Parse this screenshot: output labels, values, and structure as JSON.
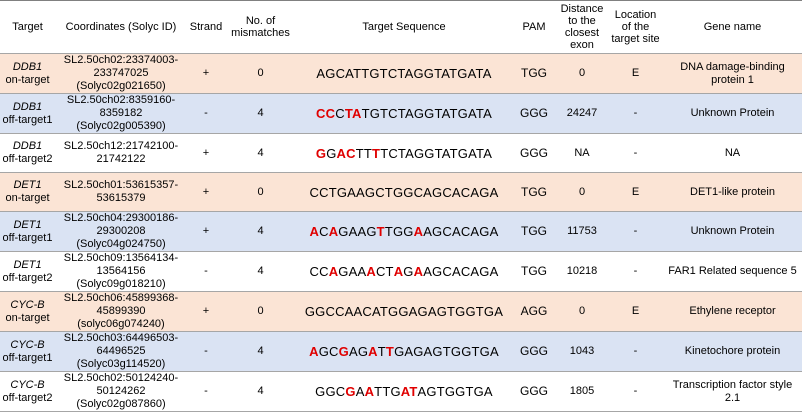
{
  "table": {
    "header": [
      "Target",
      "Coordinates (Solyc ID)",
      "Strand",
      "No. of mismatches",
      "Target Sequence",
      "PAM",
      "Distance to the closest exon",
      "Location of the target site",
      "Gene name"
    ],
    "rows": [
      {
        "shade": "#fbe4d5",
        "target": {
          "gene": "DDB1",
          "label": "on-target"
        },
        "coordinates": {
          "location": "SL2.50ch02:23374003-233747025",
          "id": "(Solyc02g021650)"
        },
        "strand": "+",
        "mismatches": 0,
        "sequence": [
          {
            "text": "AGCATTGTCTAGGTATGATA",
            "mismatch": false
          }
        ],
        "pam": "TGG",
        "distance": "0",
        "location": "E",
        "gene_name": "DNA damage-binding protein 1"
      },
      {
        "shade": "#dae3f3",
        "target": {
          "gene": "DDB1",
          "label": "off-target1"
        },
        "coordinates": {
          "location": "SL2.50ch02:8359160-8359182",
          "id": "(Solyc02g005390)"
        },
        "strand": "-",
        "mismatches": 4,
        "sequence": [
          {
            "text": "CC",
            "mismatch": true
          },
          {
            "text": "C",
            "mismatch": false
          },
          {
            "text": "TA",
            "mismatch": true
          },
          {
            "text": "TGTCTAGGTATGATA",
            "mismatch": false
          }
        ],
        "pam": "GGG",
        "distance": "24247",
        "location": "-",
        "gene_name": "Unknown Protein"
      },
      {
        "shade": "#ffffff",
        "target": {
          "gene": "DDB1",
          "label": "off-target2"
        },
        "coordinates": {
          "location": "SL2.50ch12:21742100-21742122"
        },
        "strand": "+",
        "mismatches": 4,
        "sequence": [
          {
            "text": "G",
            "mismatch": true
          },
          {
            "text": "G",
            "mismatch": false
          },
          {
            "text": "AC",
            "mismatch": true
          },
          {
            "text": "TT",
            "mismatch": false
          },
          {
            "text": "T",
            "mismatch": true
          },
          {
            "text": "TCTAGGTATGATA",
            "mismatch": false
          }
        ],
        "pam": "GGG",
        "distance": "NA",
        "location": "-",
        "gene_name": "NA"
      },
      {
        "shade": "#fbe4d5",
        "target": {
          "gene": "DET1",
          "label": "on-target"
        },
        "coordinates": {
          "location": "SL2.50ch01:53615357-53615379"
        },
        "strand": "+",
        "mismatches": 0,
        "sequence": [
          {
            "text": "CCTGAAGCTGGCAGCACAGA",
            "mismatch": false
          }
        ],
        "pam": "TGG",
        "distance": "0",
        "location": "E",
        "gene_name": "DET1-like protein"
      },
      {
        "shade": "#dae3f3",
        "target": {
          "gene": "DET1",
          "label": "off-target1"
        },
        "coordinates": {
          "location": "SL2.50ch04:29300186-29300208",
          "id": "(Solyc04g024750)"
        },
        "strand": "+",
        "mismatches": 4,
        "sequence": [
          {
            "text": "A",
            "mismatch": true
          },
          {
            "text": "C",
            "mismatch": false
          },
          {
            "text": "A",
            "mismatch": true
          },
          {
            "text": "GAAG",
            "mismatch": false
          },
          {
            "text": "T",
            "mismatch": true
          },
          {
            "text": "TGG",
            "mismatch": false
          },
          {
            "text": "A",
            "mismatch": true
          },
          {
            "text": "AGCACAGA",
            "mismatch": false
          }
        ],
        "pam": "TGG",
        "distance": "11753",
        "location": "-",
        "gene_name": "Unknown Protein"
      },
      {
        "shade": "#ffffff",
        "target": {
          "gene": "DET1",
          "label": "off-target2"
        },
        "coordinates": {
          "location": "SL2.50ch09:13564134-13564156",
          "id": "(Solyc09g018210)"
        },
        "strand": "-",
        "mismatches": 4,
        "sequence": [
          {
            "text": "CC",
            "mismatch": false
          },
          {
            "text": "A",
            "mismatch": true
          },
          {
            "text": "GAA",
            "mismatch": false
          },
          {
            "text": "A",
            "mismatch": true
          },
          {
            "text": "CT",
            "mismatch": false
          },
          {
            "text": "A",
            "mismatch": true
          },
          {
            "text": "G",
            "mismatch": false
          },
          {
            "text": "A",
            "mismatch": true
          },
          {
            "text": "AGCACAGA",
            "mismatch": false
          }
        ],
        "pam": "TGG",
        "distance": "10218",
        "location": "-",
        "gene_name": "FAR1 Related sequence 5"
      },
      {
        "shade": "#fbe4d5",
        "target": {
          "gene": "CYC-B",
          "label": "on-target"
        },
        "coordinates": {
          "location": "SL2.50ch06:45899368-45899390",
          "id": "(solyc06g074240)"
        },
        "strand": "+",
        "mismatches": 0,
        "sequence": [
          {
            "text": "GGCCAACATGGAGAGTGGTGA",
            "mismatch": false
          }
        ],
        "pam": "AGG",
        "distance": "0",
        "location": "E",
        "gene_name": "Ethylene receptor"
      },
      {
        "shade": "#dae3f3",
        "target": {
          "gene": "CYC-B",
          "label": "off-target1"
        },
        "coordinates": {
          "location": "SL2.50ch03:64496503-64496525",
          "id": "(Solyc03g114520)"
        },
        "strand": "-",
        "mismatches": 4,
        "sequence": [
          {
            "text": "A",
            "mismatch": true
          },
          {
            "text": "GC",
            "mismatch": false
          },
          {
            "text": "G",
            "mismatch": true
          },
          {
            "text": "AG",
            "mismatch": false
          },
          {
            "text": "A",
            "mismatch": true
          },
          {
            "text": "T",
            "mismatch": false
          },
          {
            "text": "T",
            "mismatch": true
          },
          {
            "text": "GAGAGTGGTGA",
            "mismatch": false
          }
        ],
        "pam": "GGG",
        "distance": "1043",
        "location": "-",
        "gene_name": "Kinetochore protein"
      },
      {
        "shade": "#ffffff",
        "target": {
          "gene": "CYC-B",
          "label": "off-target2"
        },
        "coordinates": {
          "location": "SL2.50ch02:50124240-50124262",
          "id": "(Solyc02g087860)"
        },
        "strand": "-",
        "mismatches": 4,
        "sequence": [
          {
            "text": "GGC",
            "mismatch": false
          },
          {
            "text": "G",
            "mismatch": true
          },
          {
            "text": "A",
            "mismatch": false
          },
          {
            "text": "A",
            "mismatch": true
          },
          {
            "text": "TTG",
            "mismatch": false
          },
          {
            "text": "AT",
            "mismatch": true
          },
          {
            "text": "AGTGGTGA",
            "mismatch": false
          }
        ],
        "pam": "GGG",
        "distance": "1805",
        "location": "-",
        "gene_name": "Transcription factor style 2.1"
      }
    ]
  }
}
